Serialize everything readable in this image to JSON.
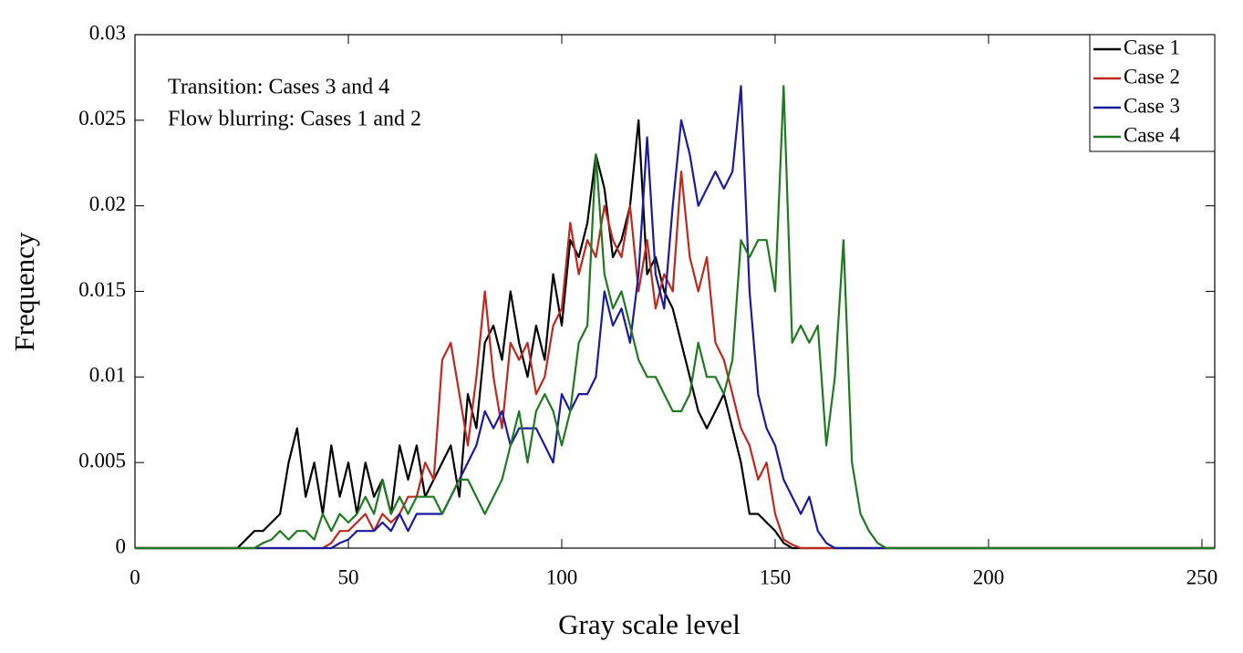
{
  "chart_data": {
    "type": "line",
    "xlabel": "Gray scale level",
    "ylabel": "Frequency",
    "annotations": [
      "Transition: Cases 3 and 4",
      "Flow blurring: Cases 1 and 2"
    ],
    "x": [
      0,
      20,
      22,
      24,
      26,
      28,
      30,
      32,
      34,
      36,
      38,
      40,
      42,
      44,
      46,
      48,
      50,
      52,
      54,
      56,
      58,
      60,
      62,
      64,
      66,
      68,
      70,
      72,
      74,
      76,
      78,
      80,
      82,
      84,
      86,
      88,
      90,
      92,
      94,
      96,
      98,
      100,
      102,
      104,
      106,
      108,
      110,
      112,
      114,
      116,
      118,
      120,
      122,
      124,
      126,
      128,
      130,
      132,
      134,
      136,
      138,
      140,
      142,
      144,
      146,
      148,
      150,
      152,
      154,
      156,
      158,
      160,
      162,
      164,
      166,
      168,
      170,
      172,
      174,
      176,
      178,
      180,
      253
    ],
    "series": [
      {
        "name": "Case 1",
        "color": "#000000",
        "values": [
          0,
          0,
          0,
          0,
          0.0005,
          0.001,
          0.001,
          0.0015,
          0.002,
          0.005,
          0.007,
          0.003,
          0.005,
          0.002,
          0.006,
          0.003,
          0.005,
          0.002,
          0.005,
          0.003,
          0.004,
          0.002,
          0.006,
          0.004,
          0.006,
          0.003,
          0.004,
          0.005,
          0.006,
          0.003,
          0.009,
          0.007,
          0.012,
          0.013,
          0.011,
          0.015,
          0.012,
          0.01,
          0.013,
          0.011,
          0.016,
          0.013,
          0.018,
          0.017,
          0.019,
          0.023,
          0.021,
          0.017,
          0.018,
          0.02,
          0.025,
          0.016,
          0.017,
          0.015,
          0.014,
          0.012,
          0.01,
          0.008,
          0.007,
          0.008,
          0.009,
          0.007,
          0.005,
          0.002,
          0.002,
          0.0015,
          0.001,
          0.0003,
          0,
          0,
          0,
          0,
          0,
          0,
          0,
          0,
          0,
          0,
          0,
          0,
          0,
          0,
          0
        ]
      },
      {
        "name": "Case 2",
        "color": "#c0281e",
        "values": [
          0,
          0,
          0,
          0,
          0,
          0,
          0,
          0,
          0,
          0,
          0,
          0,
          0,
          0,
          0.0003,
          0.001,
          0.001,
          0.0015,
          0.002,
          0.001,
          0.002,
          0.0015,
          0.002,
          0.003,
          0.003,
          0.005,
          0.004,
          0.011,
          0.012,
          0.009,
          0.006,
          0.01,
          0.015,
          0.01,
          0.007,
          0.012,
          0.011,
          0.012,
          0.009,
          0.01,
          0.013,
          0.014,
          0.019,
          0.016,
          0.018,
          0.017,
          0.02,
          0.018,
          0.017,
          0.02,
          0.015,
          0.018,
          0.014,
          0.016,
          0.015,
          0.022,
          0.017,
          0.015,
          0.017,
          0.012,
          0.011,
          0.009,
          0.007,
          0.006,
          0.004,
          0.005,
          0.002,
          0.0005,
          0.0002,
          0,
          0,
          0,
          0,
          0,
          0,
          0,
          0,
          0,
          0,
          0,
          0,
          0,
          0
        ]
      },
      {
        "name": "Case 3",
        "color": "#1a1aa0",
        "values": [
          0,
          0,
          0,
          0,
          0,
          0,
          0,
          0,
          0,
          0,
          0,
          0,
          0,
          0,
          0,
          0.0003,
          0.0005,
          0.001,
          0.001,
          0.001,
          0.0015,
          0.001,
          0.002,
          0.001,
          0.002,
          0.002,
          0.002,
          0.002,
          0.003,
          0.004,
          0.005,
          0.006,
          0.008,
          0.007,
          0.008,
          0.006,
          0.007,
          0.007,
          0.007,
          0.006,
          0.005,
          0.009,
          0.008,
          0.009,
          0.009,
          0.01,
          0.015,
          0.013,
          0.014,
          0.012,
          0.016,
          0.024,
          0.016,
          0.014,
          0.02,
          0.025,
          0.023,
          0.02,
          0.021,
          0.022,
          0.021,
          0.022,
          0.027,
          0.015,
          0.009,
          0.007,
          0.006,
          0.004,
          0.003,
          0.002,
          0.003,
          0.001,
          0.0003,
          0,
          0,
          0,
          0,
          0,
          0,
          0,
          0,
          0,
          0
        ]
      },
      {
        "name": "Case 4",
        "color": "#1e7a1e",
        "values": [
          0,
          0,
          0,
          0,
          0,
          0,
          0.0003,
          0.0005,
          0.001,
          0.0005,
          0.001,
          0.001,
          0.0005,
          0.002,
          0.001,
          0.002,
          0.0015,
          0.002,
          0.003,
          0.002,
          0.004,
          0.002,
          0.003,
          0.002,
          0.003,
          0.003,
          0.003,
          0.002,
          0.003,
          0.004,
          0.004,
          0.003,
          0.002,
          0.003,
          0.004,
          0.006,
          0.008,
          0.005,
          0.008,
          0.009,
          0.008,
          0.006,
          0.008,
          0.012,
          0.013,
          0.023,
          0.016,
          0.014,
          0.015,
          0.013,
          0.011,
          0.01,
          0.01,
          0.009,
          0.008,
          0.008,
          0.009,
          0.012,
          0.01,
          0.01,
          0.009,
          0.011,
          0.018,
          0.017,
          0.018,
          0.018,
          0.015,
          0.027,
          0.012,
          0.013,
          0.012,
          0.013,
          0.006,
          0.01,
          0.018,
          0.005,
          0.002,
          0.001,
          0.0003,
          0,
          0,
          0,
          0
        ]
      }
    ],
    "xlim": [
      0,
      253
    ],
    "xticks": [
      0,
      50,
      100,
      150,
      200,
      250
    ],
    "ylim": [
      0,
      0.03
    ],
    "yticks": [
      0,
      0.005,
      0.01,
      0.015,
      0.02,
      0.025,
      0.03
    ],
    "grid": false,
    "legend": "upper right"
  }
}
